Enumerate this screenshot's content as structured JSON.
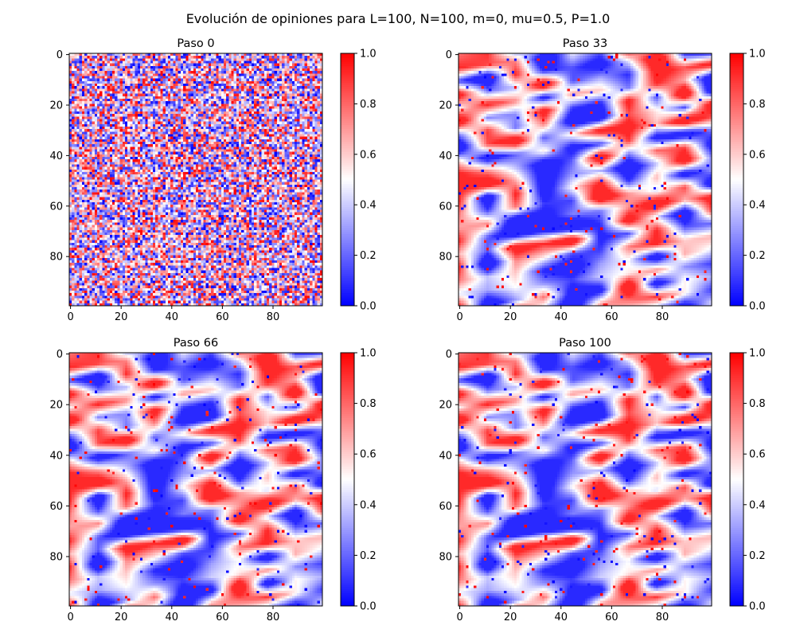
{
  "suptitle": "Evolución de opiniones para L=100, N=100, m=0, mu=0.5, P=1.0",
  "colormap": {
    "name": "bwr",
    "low": "#0000ff",
    "mid": "#ffffff",
    "high": "#ff0000"
  },
  "chart_data": [
    {
      "type": "heatmap",
      "title": "Paso 0",
      "grid_size": [
        100,
        100
      ],
      "pattern": "uniform random noise",
      "x_ticks": [
        "0",
        "20",
        "40",
        "60",
        "80"
      ],
      "y_ticks": [
        "0",
        "20",
        "40",
        "60",
        "80"
      ],
      "colorbar": {
        "range": [
          0.0,
          1.0
        ],
        "ticks": [
          "0.0",
          "0.2",
          "0.4",
          "0.6",
          "0.8",
          "1.0"
        ]
      }
    },
    {
      "type": "heatmap",
      "title": "Paso 33",
      "grid_size": [
        100,
        100
      ],
      "pattern": "horizontally smeared clusters with isolated extreme cells",
      "x_ticks": [
        "0",
        "20",
        "40",
        "60",
        "80"
      ],
      "y_ticks": [
        "0",
        "20",
        "40",
        "60",
        "80"
      ],
      "colorbar": {
        "range": [
          0.0,
          1.0
        ],
        "ticks": [
          "0.0",
          "0.2",
          "0.4",
          "0.6",
          "0.8",
          "1.0"
        ]
      }
    },
    {
      "type": "heatmap",
      "title": "Paso 66",
      "grid_size": [
        100,
        100
      ],
      "pattern": "horizontally smeared clusters with isolated extreme cells",
      "x_ticks": [
        "0",
        "20",
        "40",
        "60",
        "80"
      ],
      "y_ticks": [
        "0",
        "20",
        "40",
        "60",
        "80"
      ],
      "colorbar": {
        "range": [
          0.0,
          1.0
        ],
        "ticks": [
          "0.0",
          "0.2",
          "0.4",
          "0.6",
          "0.8",
          "1.0"
        ]
      }
    },
    {
      "type": "heatmap",
      "title": "Paso 100",
      "grid_size": [
        100,
        100
      ],
      "pattern": "horizontally smeared clusters with isolated extreme cells",
      "x_ticks": [
        "0",
        "20",
        "40",
        "60",
        "80"
      ],
      "y_ticks": [
        "0",
        "20",
        "40",
        "60",
        "80"
      ],
      "colorbar": {
        "range": [
          0.0,
          1.0
        ],
        "ticks": [
          "0.0",
          "0.2",
          "0.4",
          "0.6",
          "0.8",
          "1.0"
        ]
      }
    }
  ]
}
